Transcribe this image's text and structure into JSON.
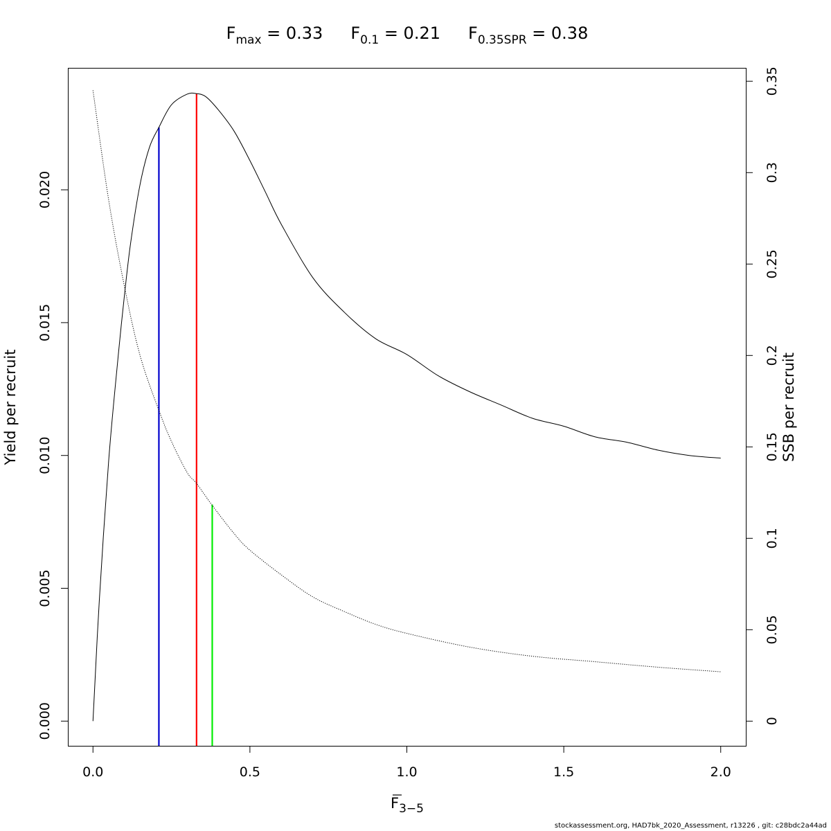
{
  "chart_data": {
    "type": "line",
    "title": {
      "parts": [
        {
          "base": "F",
          "sub": "max",
          "value": " = 0.33"
        },
        {
          "base": "F",
          "sub": "0.1",
          "value": " = 0.21"
        },
        {
          "base": "F",
          "sub": "0.35SPR",
          "value": " = 0.38"
        }
      ]
    },
    "xlabel": {
      "base": "F",
      "sub": "3−5"
    },
    "ylabel": "Yield per recruit",
    "y2label": "SSB per recruit",
    "xlim": [
      -0.08,
      2.08
    ],
    "ylim": [
      -0.00093,
      0.02459
    ],
    "y2lim": [
      -0.0135,
      0.3573
    ],
    "x_ticks": [
      {
        "value": 0.0,
        "label": "0.0"
      },
      {
        "value": 0.5,
        "label": "0.5"
      },
      {
        "value": 1.0,
        "label": "1.0"
      },
      {
        "value": 1.5,
        "label": "1.5"
      },
      {
        "value": 2.0,
        "label": "2.0"
      }
    ],
    "y_ticks": [
      {
        "value": 0.0,
        "label": "0.000"
      },
      {
        "value": 0.005,
        "label": "0.005"
      },
      {
        "value": 0.01,
        "label": "0.010"
      },
      {
        "value": 0.015,
        "label": "0.015"
      },
      {
        "value": 0.02,
        "label": "0.020"
      }
    ],
    "y2_ticks": [
      {
        "value": 0.0,
        "label": "0"
      },
      {
        "value": 0.05,
        "label": "0.05"
      },
      {
        "value": 0.1,
        "label": "0.1"
      },
      {
        "value": 0.15,
        "label": "0.15"
      },
      {
        "value": 0.2,
        "label": "0.2"
      },
      {
        "value": 0.25,
        "label": "0.25"
      },
      {
        "value": 0.3,
        "label": "0.3"
      },
      {
        "value": 0.35,
        "label": "0.35"
      }
    ],
    "series": [
      {
        "axis": "left",
        "style": "solid",
        "color": "#000000",
        "x": [
          0.0,
          0.02,
          0.05,
          0.08,
          0.1,
          0.12,
          0.15,
          0.18,
          0.21,
          0.25,
          0.3,
          0.33,
          0.36,
          0.4,
          0.45,
          0.5,
          0.55,
          0.6,
          0.7,
          0.8,
          0.9,
          1.0,
          1.1,
          1.2,
          1.3,
          1.4,
          1.5,
          1.6,
          1.7,
          1.8,
          1.9,
          2.0
        ],
        "y": [
          0.0,
          0.0045,
          0.0098,
          0.0137,
          0.016,
          0.018,
          0.0202,
          0.0216,
          0.02235,
          0.0232,
          0.0236,
          0.02362,
          0.0235,
          0.023,
          0.0222,
          0.0211,
          0.0199,
          0.0187,
          0.0167,
          0.0154,
          0.0144,
          0.0138,
          0.013,
          0.0124,
          0.0119,
          0.0114,
          0.0111,
          0.0107,
          0.0105,
          0.0102,
          0.01,
          0.0099
        ]
      },
      {
        "axis": "right",
        "style": "dotted",
        "color": "#000000",
        "x": [
          0.0,
          0.05,
          0.1,
          0.15,
          0.21,
          0.25,
          0.3,
          0.33,
          0.38,
          0.45,
          0.5,
          0.6,
          0.7,
          0.8,
          0.9,
          1.0,
          1.2,
          1.4,
          1.6,
          1.8,
          2.0
        ],
        "y": [
          0.345,
          0.285,
          0.238,
          0.2,
          0.17,
          0.153,
          0.136,
          0.13,
          0.118,
          0.1025,
          0.0935,
          0.08,
          0.068,
          0.06,
          0.053,
          0.048,
          0.0405,
          0.0355,
          0.0325,
          0.0295,
          0.027
        ]
      }
    ],
    "reference_lines": [
      {
        "x": 0.21,
        "y_top": 0.02235,
        "color": "#0000cd"
      },
      {
        "x": 0.33,
        "y_top": 0.02362,
        "color": "#ff0000"
      },
      {
        "x": 0.38,
        "y_top": 0.00815,
        "color": "#00ee00"
      }
    ]
  },
  "footer": "stockassessment.org, HAD7bk_2020_Assessment, r13226 , git: c28bdc2a44ad"
}
